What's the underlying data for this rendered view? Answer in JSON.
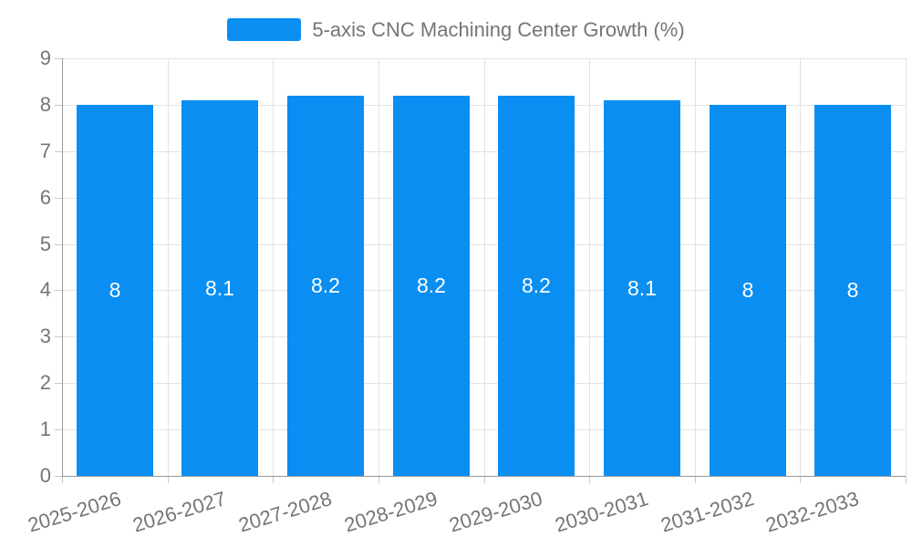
{
  "chart_data": {
    "type": "bar",
    "title": "5-axis CNC Machining Center Growth (%)",
    "legend_entries": [
      "5-axis CNC Machining Center Growth (%)"
    ],
    "legend_position": "top",
    "categories": [
      "2025-2026",
      "2026-2027",
      "2027-2028",
      "2028-2029",
      "2029-2030",
      "2030-2031",
      "2031-2032",
      "2032-2033"
    ],
    "values": [
      8,
      8.1,
      8.2,
      8.2,
      8.2,
      8.1,
      8,
      8
    ],
    "value_labels": [
      "8",
      "8.1",
      "8.2",
      "8.2",
      "8.2",
      "8.1",
      "8",
      "8"
    ],
    "xlabel": "",
    "ylabel": "",
    "ylim": [
      0,
      9
    ],
    "yticks": [
      0,
      1,
      2,
      3,
      4,
      5,
      6,
      7,
      8,
      9
    ],
    "grid": true,
    "colors": {
      "bar": "#0a8ef2",
      "value_label": "#ffffff",
      "axis_text": "#757575",
      "axis_line": "#999999",
      "gridline": "#e3e3e3"
    }
  }
}
